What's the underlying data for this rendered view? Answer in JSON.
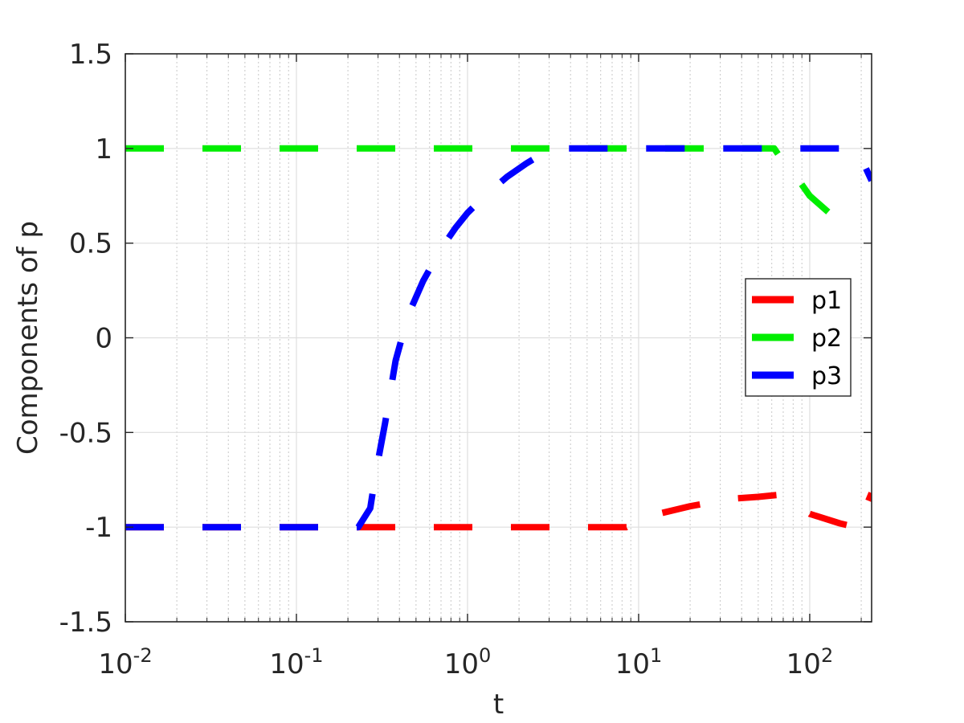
{
  "chart_data": {
    "type": "line",
    "title": "",
    "xlabel": "t",
    "ylabel": "Components of p",
    "x_scale": "log",
    "xlim": [
      0.01,
      230
    ],
    "ylim": [
      -1.5,
      1.5
    ],
    "x_ticks": [
      {
        "base": "10",
        "exp": "-2",
        "value": 0.01
      },
      {
        "base": "10",
        "exp": "-1",
        "value": 0.1
      },
      {
        "base": "10",
        "exp": "0",
        "value": 1
      },
      {
        "base": "10",
        "exp": "1",
        "value": 10
      },
      {
        "base": "10",
        "exp": "2",
        "value": 100
      }
    ],
    "y_ticks": [
      {
        "label": "1.5",
        "value": 1.5
      },
      {
        "label": "1",
        "value": 1
      },
      {
        "label": "0.5",
        "value": 0.5
      },
      {
        "label": "0",
        "value": 0
      },
      {
        "label": "-0.5",
        "value": -0.5
      },
      {
        "label": "-1",
        "value": -1
      },
      {
        "label": "-1.5",
        "value": -1.5
      }
    ],
    "grid": true,
    "legend_position": "right",
    "series": [
      {
        "name": "p1",
        "color": "#ff0000",
        "x": [
          0.01,
          0.25,
          0.5,
          1,
          2,
          5,
          8.5,
          10,
          13,
          20,
          35,
          50,
          65,
          80,
          100,
          150,
          185,
          200,
          230
        ],
        "y": [
          -1,
          -1,
          -1,
          -1,
          -1,
          -1,
          -1,
          -0.97,
          -0.93,
          -0.89,
          -0.85,
          -0.84,
          -0.83,
          -0.87,
          -0.93,
          -0.98,
          -1.0,
          -0.95,
          -0.82
        ]
      },
      {
        "name": "p2",
        "color": "#00ee00",
        "x": [
          0.01,
          0.1,
          1,
          10,
          30,
          62,
          70,
          85,
          100,
          130,
          165
        ],
        "y": [
          1,
          1,
          1,
          1,
          1,
          1,
          0.93,
          0.84,
          0.75,
          0.66,
          0.58
        ]
      },
      {
        "name": "p3",
        "color": "#0000ff",
        "x": [
          0.01,
          0.1,
          0.23,
          0.27,
          0.29,
          0.33,
          0.38,
          0.45,
          0.55,
          0.7,
          0.85,
          1.0,
          1.3,
          1.7,
          2.2,
          2.6,
          3.5,
          5,
          10,
          30,
          100,
          180,
          195,
          230
        ],
        "y": [
          -1,
          -1,
          -1,
          -0.9,
          -0.72,
          -0.45,
          -0.12,
          0.12,
          0.3,
          0.47,
          0.58,
          0.66,
          0.76,
          0.85,
          0.92,
          0.96,
          1,
          1,
          1,
          1,
          1,
          1,
          0.97,
          0.83
        ]
      }
    ]
  }
}
